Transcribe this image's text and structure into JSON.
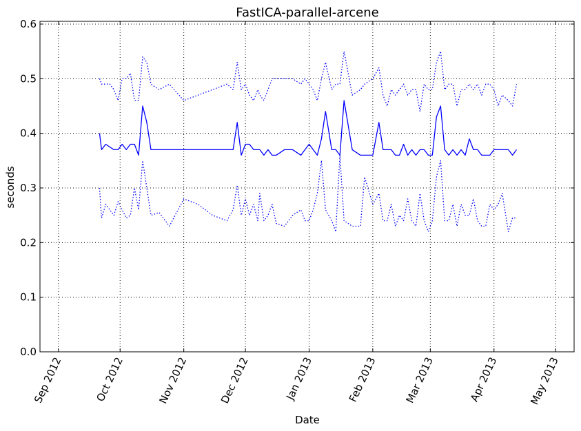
{
  "chart_data": {
    "type": "line",
    "title": "FastICA-parallel-arcene",
    "xlabel": "Date",
    "ylabel": "seconds",
    "xlim": [
      "2012-08-23",
      "2013-05-10"
    ],
    "ylim": [
      0.0,
      0.605
    ],
    "grid": true,
    "x_ticks": [
      {
        "date": "2012-09-01",
        "label": "Sep 2012"
      },
      {
        "date": "2012-10-01",
        "label": "Oct 2012"
      },
      {
        "date": "2012-11-01",
        "label": "Nov 2012"
      },
      {
        "date": "2012-12-01",
        "label": "Dec 2012"
      },
      {
        "date": "2013-01-01",
        "label": "Jan 2013"
      },
      {
        "date": "2013-02-01",
        "label": "Feb 2013"
      },
      {
        "date": "2013-03-01",
        "label": "Mar 2013"
      },
      {
        "date": "2013-04-01",
        "label": "Apr 2013"
      },
      {
        "date": "2013-05-01",
        "label": "May 2013"
      }
    ],
    "y_ticks": [
      {
        "value": 0.0,
        "label": "0.0"
      },
      {
        "value": 0.1,
        "label": "0.1"
      },
      {
        "value": 0.2,
        "label": "0.2"
      },
      {
        "value": 0.3,
        "label": "0.3"
      },
      {
        "value": 0.4,
        "label": "0.4"
      },
      {
        "value": 0.5,
        "label": "0.5"
      },
      {
        "value": 0.6,
        "label": "0.6"
      }
    ],
    "series": [
      {
        "style": "solid",
        "color": "#0000ff",
        "x": [
          "2012-09-21",
          "2012-09-22",
          "2012-09-24",
          "2012-09-26",
          "2012-09-28",
          "2012-09-30",
          "2012-10-02",
          "2012-10-04",
          "2012-10-06",
          "2012-10-08",
          "2012-10-10",
          "2012-10-12",
          "2012-10-14",
          "2012-10-16",
          "2012-10-20",
          "2012-10-25",
          "2012-11-01",
          "2012-11-08",
          "2012-11-15",
          "2012-11-22",
          "2012-11-25",
          "2012-11-27",
          "2012-11-29",
          "2012-12-01",
          "2012-12-03",
          "2012-12-05",
          "2012-12-07",
          "2012-12-08",
          "2012-12-10",
          "2012-12-12",
          "2012-12-14",
          "2012-12-16",
          "2012-12-20",
          "2012-12-24",
          "2012-12-28",
          "2012-12-30",
          "2013-01-01",
          "2013-01-03",
          "2013-01-05",
          "2013-01-07",
          "2013-01-09",
          "2013-01-12",
          "2013-01-14",
          "2013-01-16",
          "2013-01-18",
          "2013-01-22",
          "2013-01-26",
          "2013-01-28",
          "2013-02-01",
          "2013-02-04",
          "2013-02-06",
          "2013-02-08",
          "2013-02-10",
          "2013-02-12",
          "2013-02-14",
          "2013-02-16",
          "2013-02-18",
          "2013-02-20",
          "2013-02-22",
          "2013-02-24",
          "2013-02-26",
          "2013-02-28",
          "2013-03-02",
          "2013-03-04",
          "2013-03-06",
          "2013-03-08",
          "2013-03-10",
          "2013-03-12",
          "2013-03-14",
          "2013-03-16",
          "2013-03-18",
          "2013-03-20",
          "2013-03-22",
          "2013-03-24",
          "2013-03-26",
          "2013-03-28",
          "2013-03-30",
          "2013-04-01",
          "2013-04-03",
          "2013-04-05",
          "2013-04-08",
          "2013-04-10",
          "2013-04-12"
        ],
        "y": [
          0.4,
          0.37,
          0.38,
          0.375,
          0.37,
          0.37,
          0.38,
          0.37,
          0.38,
          0.38,
          0.36,
          0.45,
          0.42,
          0.37,
          0.37,
          0.37,
          0.37,
          0.37,
          0.37,
          0.37,
          0.37,
          0.42,
          0.36,
          0.38,
          0.38,
          0.37,
          0.37,
          0.37,
          0.36,
          0.37,
          0.36,
          0.36,
          0.37,
          0.37,
          0.36,
          0.37,
          0.38,
          0.37,
          0.36,
          0.39,
          0.44,
          0.37,
          0.37,
          0.36,
          0.46,
          0.37,
          0.36,
          0.36,
          0.36,
          0.42,
          0.37,
          0.37,
          0.37,
          0.36,
          0.36,
          0.38,
          0.36,
          0.37,
          0.36,
          0.37,
          0.37,
          0.36,
          0.36,
          0.43,
          0.45,
          0.37,
          0.36,
          0.37,
          0.36,
          0.37,
          0.36,
          0.39,
          0.37,
          0.37,
          0.36,
          0.36,
          0.36,
          0.37,
          0.37,
          0.37,
          0.37,
          0.36,
          0.37
        ]
      },
      {
        "style": "dotted",
        "color": "#0000ff",
        "x": [
          "2012-09-21",
          "2012-09-22",
          "2012-09-24",
          "2012-09-26",
          "2012-09-28",
          "2012-09-30",
          "2012-10-02",
          "2012-10-04",
          "2012-10-06",
          "2012-10-08",
          "2012-10-10",
          "2012-10-12",
          "2012-10-14",
          "2012-10-16",
          "2012-10-20",
          "2012-10-25",
          "2012-11-01",
          "2012-11-08",
          "2012-11-15",
          "2012-11-22",
          "2012-11-25",
          "2012-11-27",
          "2012-11-29",
          "2012-12-01",
          "2012-12-03",
          "2012-12-05",
          "2012-12-07",
          "2012-12-08",
          "2012-12-10",
          "2012-12-12",
          "2012-12-14",
          "2012-12-16",
          "2012-12-20",
          "2012-12-24",
          "2012-12-28",
          "2012-12-30",
          "2013-01-01",
          "2013-01-03",
          "2013-01-05",
          "2013-01-07",
          "2013-01-09",
          "2013-01-12",
          "2013-01-14",
          "2013-01-16",
          "2013-01-18",
          "2013-01-22",
          "2013-01-26",
          "2013-01-28",
          "2013-02-01",
          "2013-02-04",
          "2013-02-06",
          "2013-02-08",
          "2013-02-10",
          "2013-02-12",
          "2013-02-14",
          "2013-02-16",
          "2013-02-18",
          "2013-02-20",
          "2013-02-22",
          "2013-02-24",
          "2013-02-26",
          "2013-02-28",
          "2013-03-02",
          "2013-03-04",
          "2013-03-06",
          "2013-03-08",
          "2013-03-10",
          "2013-03-12",
          "2013-03-14",
          "2013-03-16",
          "2013-03-18",
          "2013-03-20",
          "2013-03-22",
          "2013-03-24",
          "2013-03-26",
          "2013-03-28",
          "2013-03-30",
          "2013-04-01",
          "2013-04-03",
          "2013-04-05",
          "2013-04-08",
          "2013-04-10",
          "2013-04-12"
        ],
        "y": [
          0.5,
          0.49,
          0.49,
          0.49,
          0.48,
          0.46,
          0.5,
          0.5,
          0.51,
          0.46,
          0.46,
          0.54,
          0.53,
          0.49,
          0.48,
          0.49,
          0.46,
          0.47,
          0.48,
          0.49,
          0.48,
          0.53,
          0.48,
          0.49,
          0.47,
          0.46,
          0.48,
          0.47,
          0.46,
          0.48,
          0.5,
          0.5,
          0.5,
          0.5,
          0.49,
          0.5,
          0.49,
          0.48,
          0.46,
          0.5,
          0.53,
          0.48,
          0.49,
          0.49,
          0.55,
          0.47,
          0.48,
          0.49,
          0.5,
          0.52,
          0.47,
          0.45,
          0.48,
          0.47,
          0.48,
          0.49,
          0.47,
          0.48,
          0.48,
          0.44,
          0.49,
          0.48,
          0.48,
          0.53,
          0.55,
          0.48,
          0.49,
          0.49,
          0.45,
          0.48,
          0.48,
          0.49,
          0.48,
          0.49,
          0.47,
          0.49,
          0.49,
          0.48,
          0.45,
          0.47,
          0.46,
          0.45,
          0.49
        ]
      },
      {
        "style": "dotted",
        "color": "#0000ff",
        "x": [
          "2012-09-21",
          "2012-09-22",
          "2012-09-24",
          "2012-09-26",
          "2012-09-28",
          "2012-09-30",
          "2012-10-02",
          "2012-10-04",
          "2012-10-06",
          "2012-10-08",
          "2012-10-10",
          "2012-10-12",
          "2012-10-14",
          "2012-10-16",
          "2012-10-20",
          "2012-10-25",
          "2012-11-01",
          "2012-11-08",
          "2012-11-15",
          "2012-11-22",
          "2012-11-25",
          "2012-11-27",
          "2012-11-29",
          "2012-12-01",
          "2012-12-03",
          "2012-12-05",
          "2012-12-07",
          "2012-12-08",
          "2012-12-10",
          "2012-12-12",
          "2012-12-14",
          "2012-12-16",
          "2012-12-20",
          "2012-12-24",
          "2012-12-28",
          "2012-12-30",
          "2013-01-01",
          "2013-01-03",
          "2013-01-05",
          "2013-01-07",
          "2013-01-09",
          "2013-01-12",
          "2013-01-14",
          "2013-01-16",
          "2013-01-18",
          "2013-01-22",
          "2013-01-26",
          "2013-01-28",
          "2013-02-01",
          "2013-02-04",
          "2013-02-06",
          "2013-02-08",
          "2013-02-10",
          "2013-02-12",
          "2013-02-14",
          "2013-02-16",
          "2013-02-18",
          "2013-02-20",
          "2013-02-22",
          "2013-02-24",
          "2013-02-26",
          "2013-02-28",
          "2013-03-02",
          "2013-03-04",
          "2013-03-06",
          "2013-03-08",
          "2013-03-10",
          "2013-03-12",
          "2013-03-14",
          "2013-03-16",
          "2013-03-18",
          "2013-03-20",
          "2013-03-22",
          "2013-03-24",
          "2013-03-26",
          "2013-03-28",
          "2013-03-30",
          "2013-04-01",
          "2013-04-03",
          "2013-04-05",
          "2013-04-08",
          "2013-04-10",
          "2013-04-12"
        ],
        "y": [
          0.3,
          0.245,
          0.27,
          0.26,
          0.25,
          0.275,
          0.26,
          0.245,
          0.25,
          0.3,
          0.26,
          0.35,
          0.3,
          0.25,
          0.255,
          0.23,
          0.28,
          0.27,
          0.25,
          0.24,
          0.26,
          0.305,
          0.25,
          0.28,
          0.25,
          0.27,
          0.24,
          0.29,
          0.24,
          0.25,
          0.27,
          0.235,
          0.23,
          0.25,
          0.26,
          0.24,
          0.24,
          0.26,
          0.29,
          0.35,
          0.26,
          0.24,
          0.22,
          0.36,
          0.24,
          0.23,
          0.23,
          0.32,
          0.27,
          0.29,
          0.24,
          0.24,
          0.27,
          0.23,
          0.25,
          0.24,
          0.28,
          0.24,
          0.23,
          0.29,
          0.24,
          0.22,
          0.24,
          0.32,
          0.35,
          0.24,
          0.24,
          0.27,
          0.23,
          0.27,
          0.25,
          0.25,
          0.28,
          0.24,
          0.23,
          0.23,
          0.27,
          0.26,
          0.27,
          0.29,
          0.22,
          0.245,
          0.245
        ]
      }
    ]
  }
}
